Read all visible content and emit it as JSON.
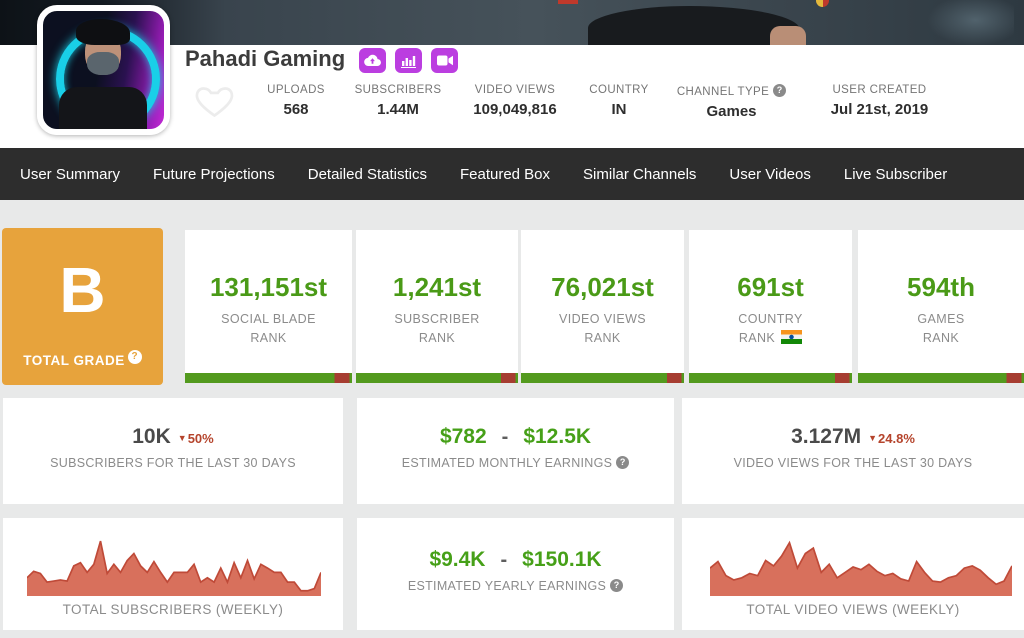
{
  "header": {
    "channel_name": "Pahadi Gaming",
    "stats": [
      {
        "label": "UPLOADS",
        "value": "568"
      },
      {
        "label": "SUBSCRIBERS",
        "value": "1.44M"
      },
      {
        "label": "VIDEO VIEWS",
        "value": "109,049,816"
      },
      {
        "label": "COUNTRY",
        "value": "IN"
      },
      {
        "label": "CHANNEL TYPE",
        "value": "Games"
      },
      {
        "label": "USER CREATED",
        "value": "Jul 21st, 2019"
      }
    ]
  },
  "nav": {
    "items": [
      "User Summary",
      "Future Projections",
      "Detailed Statistics",
      "Featured Box",
      "Similar Channels",
      "User Videos",
      "Live Subscriber"
    ]
  },
  "grade": {
    "letter": "B",
    "label": "TOTAL GRADE"
  },
  "ranks": [
    {
      "value": "131,151st",
      "label_top": "SOCIAL BLADE",
      "label_bottom": "RANK"
    },
    {
      "value": "1,241st",
      "label_top": "SUBSCRIBER",
      "label_bottom": "RANK"
    },
    {
      "value": "76,021st",
      "label_top": "VIDEO VIEWS",
      "label_bottom": "RANK"
    },
    {
      "value": "691st",
      "label_top": "COUNTRY",
      "label_bottom": "RANK",
      "flag": "IN"
    },
    {
      "value": "594th",
      "label_top": "GAMES",
      "label_bottom": "RANK"
    }
  ],
  "summary": {
    "subs_30d": {
      "value": "10K",
      "change": "50%",
      "direction": "down",
      "label": "SUBSCRIBERS FOR THE LAST 30 DAYS"
    },
    "monthly_earnings": {
      "min": "$782",
      "separator": "-",
      "max": "$12.5K",
      "label": "ESTIMATED MONTHLY EARNINGS"
    },
    "views_30d": {
      "value": "3.127M",
      "change": "24.8%",
      "direction": "down",
      "label": "VIDEO VIEWS FOR THE LAST 30 DAYS"
    },
    "yearly_earnings": {
      "min": "$9.4K",
      "separator": "-",
      "max": "$150.1K",
      "label": "ESTIMATED YEARLY EARNINGS"
    }
  },
  "chart_data": [
    {
      "type": "area",
      "title": "TOTAL SUBSCRIBERS (WEEKLY)",
      "ylim": [
        0,
        100
      ],
      "values": [
        30,
        42,
        38,
        22,
        24,
        26,
        24,
        52,
        58,
        40,
        55,
        98,
        38,
        55,
        40,
        62,
        75,
        52,
        40,
        60,
        40,
        22,
        40,
        40,
        40,
        55,
        22,
        30,
        22,
        48,
        22,
        58,
        30,
        62,
        28,
        55,
        48,
        40,
        40,
        22,
        22,
        6,
        6,
        10,
        40
      ]
    },
    {
      "type": "area",
      "title": "TOTAL VIDEO VIEWS (WEEKLY)",
      "ylim": [
        0,
        100
      ],
      "values": [
        48,
        60,
        34,
        26,
        30,
        38,
        34,
        62,
        52,
        70,
        95,
        48,
        75,
        85,
        40,
        55,
        30,
        40,
        50,
        45,
        55,
        42,
        34,
        38,
        28,
        24,
        60,
        40,
        24,
        22,
        30,
        34,
        48,
        52,
        44,
        30,
        18,
        24,
        52
      ]
    }
  ],
  "icons": {
    "help_glyph": "?",
    "down_arrow": "▼"
  },
  "colors": {
    "accent_purple": "#bb3ee0",
    "grade_orange": "#e7a33c",
    "rank_green": "#4a9a17",
    "bar_green": "#539a1e",
    "bar_red": "#a63d31",
    "chart_fill": "#d8705c",
    "chart_stroke": "#bf4a38",
    "change_red": "#b5442c",
    "nav_bg": "#2d2d2d"
  }
}
